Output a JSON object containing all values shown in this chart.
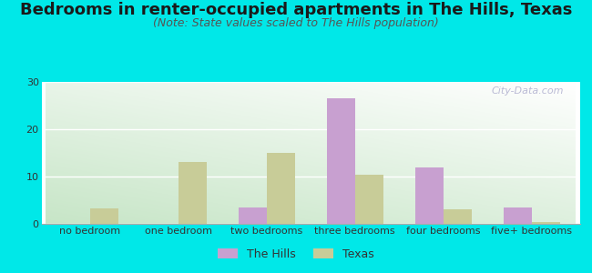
{
  "title": "Bedrooms in renter-occupied apartments in The Hills, Texas",
  "subtitle": "(Note: State values scaled to The Hills population)",
  "categories": [
    "no bedroom",
    "one bedroom",
    "two bedrooms",
    "three bedrooms",
    "four bedrooms",
    "five+ bedrooms"
  ],
  "the_hills": [
    0,
    0,
    3.5,
    26.5,
    12,
    3.5
  ],
  "texas": [
    3.3,
    13,
    15,
    10.3,
    3.0,
    0.4
  ],
  "hills_color": "#c8a0d0",
  "texas_color": "#c8cc98",
  "background_color": "#00e8e8",
  "ylim": [
    0,
    30
  ],
  "yticks": [
    0,
    10,
    20,
    30
  ],
  "bar_width": 0.32,
  "title_fontsize": 13,
  "subtitle_fontsize": 9,
  "tick_fontsize": 8,
  "legend_labels": [
    "The Hills",
    "Texas"
  ],
  "watermark": "City-Data.com"
}
